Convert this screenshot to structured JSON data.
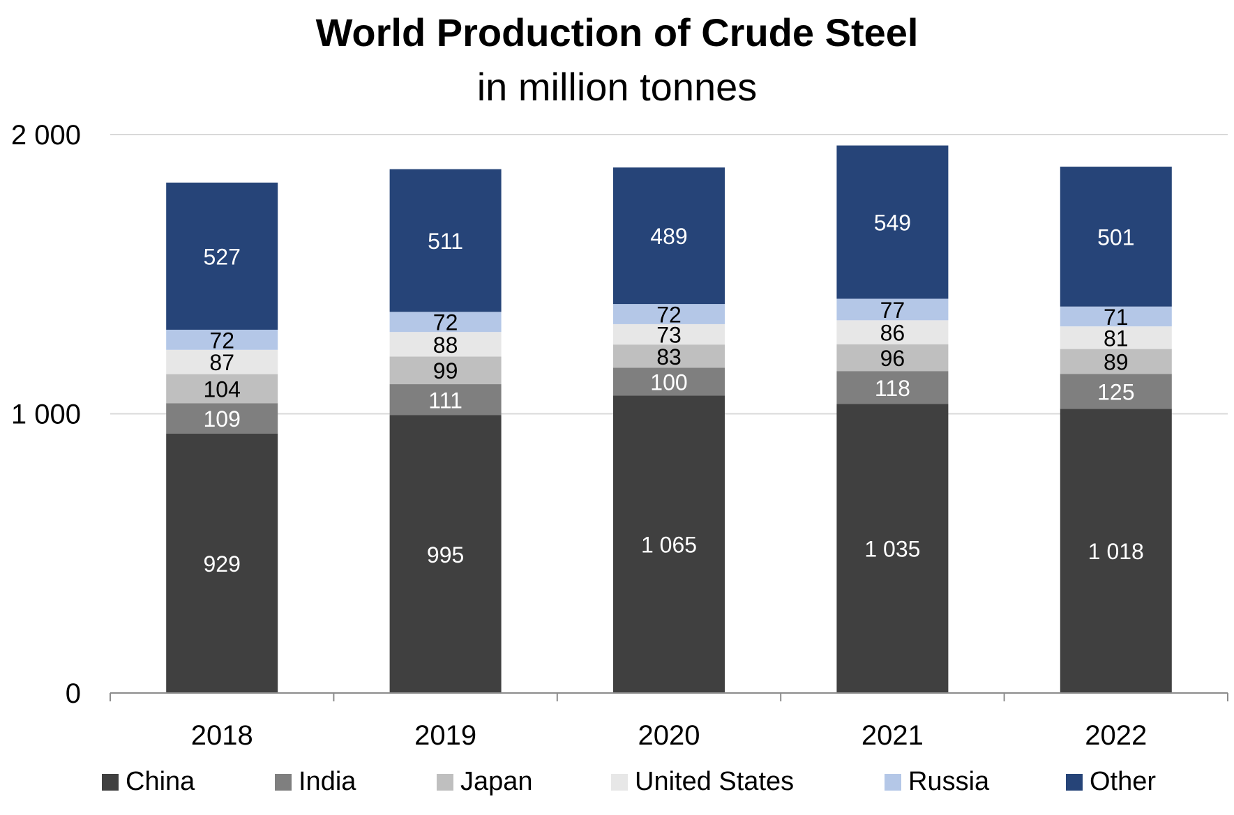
{
  "chart_data": {
    "type": "bar",
    "stacked": true,
    "title": "World Production of Crude Steel",
    "subtitle": "in million tonnes",
    "categories": [
      "2018",
      "2019",
      "2020",
      "2021",
      "2022"
    ],
    "series": [
      {
        "name": "China",
        "values": [
          929,
          995,
          1065,
          1035,
          1018
        ],
        "labels": [
          "929",
          "995",
          "1 065",
          "1 035",
          "1 018"
        ],
        "color": "#404040",
        "label_color": "#ffffff"
      },
      {
        "name": "India",
        "values": [
          109,
          111,
          100,
          118,
          125
        ],
        "labels": [
          "109",
          "111",
          "100",
          "118",
          "125"
        ],
        "color": "#7f7f7f",
        "label_color": "#ffffff"
      },
      {
        "name": "Japan",
        "values": [
          104,
          99,
          83,
          96,
          89
        ],
        "labels": [
          "104",
          "99",
          "83",
          "96",
          "89"
        ],
        "color": "#bfbfbf",
        "label_color": "#000000"
      },
      {
        "name": "United States",
        "values": [
          87,
          88,
          73,
          86,
          81
        ],
        "labels": [
          "87",
          "88",
          "73",
          "86",
          "81"
        ],
        "color": "#e7e7e7",
        "label_color": "#000000"
      },
      {
        "name": "Russia",
        "values": [
          72,
          72,
          72,
          77,
          71
        ],
        "labels": [
          "72",
          "72",
          "72",
          "77",
          "71"
        ],
        "color": "#b4c7e7",
        "label_color": "#000000"
      },
      {
        "name": "Other",
        "values": [
          527,
          511,
          489,
          549,
          501
        ],
        "labels": [
          "527",
          "511",
          "489",
          "549",
          "501"
        ],
        "color": "#264478",
        "label_color": "#ffffff"
      }
    ],
    "ylim": [
      0,
      2000
    ],
    "yticks": [
      0,
      1000,
      2000
    ],
    "ytick_labels": [
      "0",
      "1 000",
      "2 000"
    ],
    "grid": true,
    "legend_position": "bottom"
  }
}
